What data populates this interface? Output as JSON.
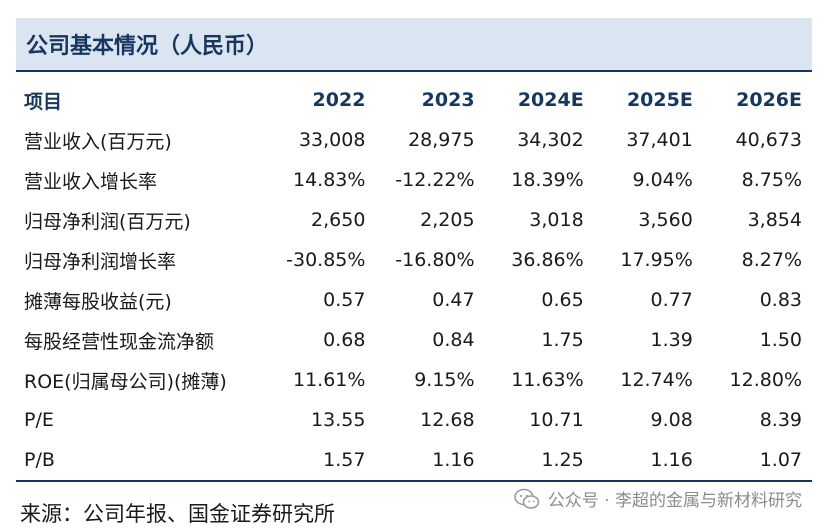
{
  "title": "公司基本情况（人民币）",
  "header": [
    "项目",
    "2022",
    "2023",
    "2024E",
    "2025E",
    "2026E"
  ],
  "rows": [
    {
      "label": "营业收入(百万元)",
      "values": [
        "33,008",
        "28,975",
        "34,302",
        "37,401",
        "40,673"
      ]
    },
    {
      "label": "营业收入增长率",
      "values": [
        "14.83%",
        "-12.22%",
        "18.39%",
        "9.04%",
        "8.75%"
      ]
    },
    {
      "label": "归母净利润(百万元)",
      "values": [
        "2,650",
        "2,205",
        "3,018",
        "3,560",
        "3,854"
      ]
    },
    {
      "label": "归母净利润增长率",
      "values": [
        "-30.85%",
        "-16.80%",
        "36.86%",
        "17.95%",
        "8.27%"
      ]
    },
    {
      "label": "摊薄每股收益(元)",
      "values": [
        "0.57",
        "0.47",
        "0.65",
        "0.77",
        "0.83"
      ]
    },
    {
      "label": "每股经营性现金流净额",
      "values": [
        "0.68",
        "0.84",
        "1.75",
        "1.39",
        "1.50"
      ]
    },
    {
      "label": "ROE(归属母公司)(摊薄)",
      "values": [
        "11.61%",
        "9.15%",
        "11.63%",
        "12.74%",
        "12.80%"
      ]
    },
    {
      "label": "P/E",
      "values": [
        "13.55",
        "12.68",
        "10.71",
        "9.08",
        "8.39"
      ]
    },
    {
      "label": "P/B",
      "values": [
        "1.57",
        "1.16",
        "1.25",
        "1.16",
        "1.07"
      ]
    }
  ],
  "source": "来源：公司年报、国金证券研究所",
  "watermark": {
    "text": "公众号 · 李超的金属与新材料研究",
    "icon": "wechat-icon"
  },
  "colors": {
    "title_bg": "#dbe5f1",
    "accent": "#17375e",
    "watermark": "#8c8c8c"
  }
}
